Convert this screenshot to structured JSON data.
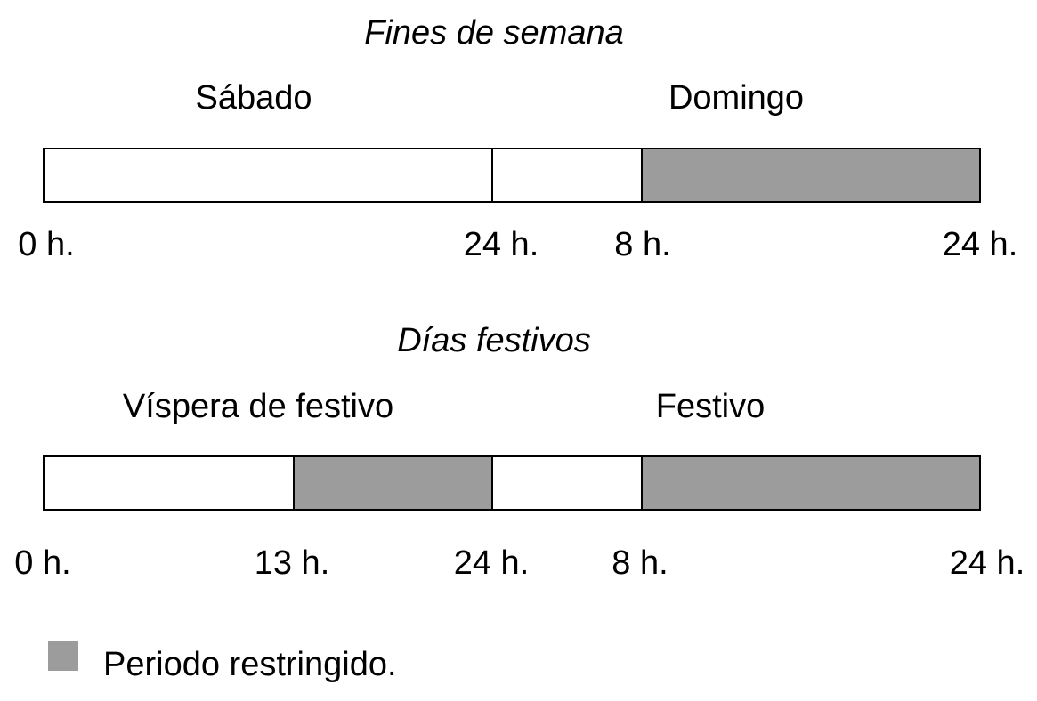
{
  "colors": {
    "restricted": "#9c9c9d",
    "free": "#ffffff",
    "border": "#000000"
  },
  "weekend": {
    "title": "Fines de semana",
    "day1_label": "Sábado",
    "day2_label": "Domingo",
    "ticks": [
      "0 h.",
      "24 h.",
      "8 h.",
      "24 h."
    ],
    "segments": [
      {
        "day": "Sábado",
        "from": "0 h.",
        "to": "24 h.",
        "restricted": false
      },
      {
        "day": "Domingo",
        "from": "0 h.",
        "to": "8 h.",
        "restricted": false
      },
      {
        "day": "Domingo",
        "from": "8 h.",
        "to": "24 h.",
        "restricted": true
      }
    ]
  },
  "holidays": {
    "title": "Días festivos",
    "day1_label": "Víspera de festivo",
    "day2_label": "Festivo",
    "ticks": [
      "0 h.",
      "13 h.",
      "24 h.",
      "8 h.",
      "24 h."
    ],
    "segments": [
      {
        "day": "Víspera de festivo",
        "from": "0 h.",
        "to": "13 h.",
        "restricted": false
      },
      {
        "day": "Víspera de festivo",
        "from": "13 h.",
        "to": "24 h.",
        "restricted": true
      },
      {
        "day": "Festivo",
        "from": "0 h.",
        "to": "8 h.",
        "restricted": false
      },
      {
        "day": "Festivo",
        "from": "8 h.",
        "to": "24 h.",
        "restricted": true
      }
    ]
  },
  "legend": {
    "label": "Periodo restringido."
  }
}
